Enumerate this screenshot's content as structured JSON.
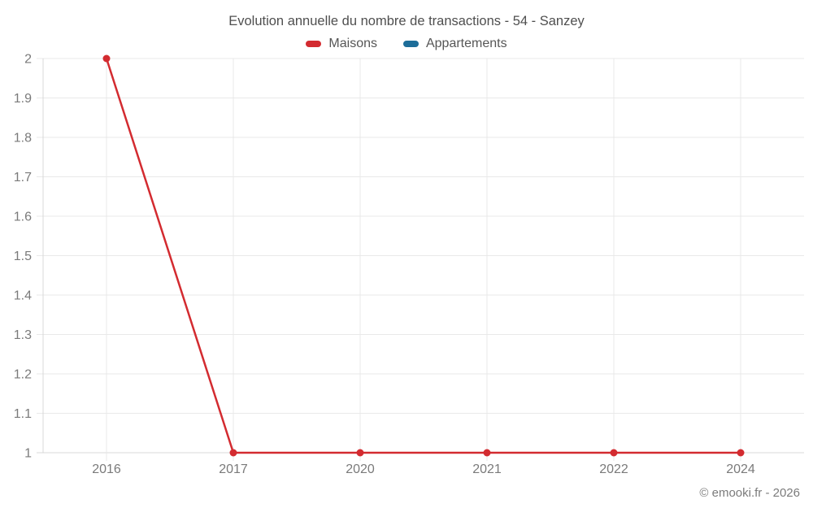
{
  "chart_data": {
    "type": "line",
    "title": "Evolution annuelle du nombre de transactions - 54 - Sanzey",
    "categories": [
      "2016",
      "2017",
      "2020",
      "2021",
      "2022",
      "2024"
    ],
    "series": [
      {
        "name": "Maisons",
        "color": "#d32b30",
        "values": [
          2,
          1,
          1,
          1,
          1,
          1
        ]
      },
      {
        "name": "Appartements",
        "color": "#1d6d99",
        "values": []
      }
    ],
    "xlabel": "",
    "ylabel": "",
    "ylim": [
      1,
      2
    ],
    "ytick_step": 0.1,
    "ytick_labels": [
      "1",
      "1.1",
      "1.2",
      "1.3",
      "1.4",
      "1.5",
      "1.6",
      "1.7",
      "1.8",
      "1.9",
      "2"
    ],
    "grid": true,
    "legend_position": "top",
    "marker": "circle"
  },
  "footer": {
    "copyright": "© emooki.fr - 2026"
  },
  "colors": {
    "grid": "#e9e9e9",
    "axis": "#d8d8d8",
    "tick_text": "#7a7a7a",
    "background": "#ffffff"
  }
}
